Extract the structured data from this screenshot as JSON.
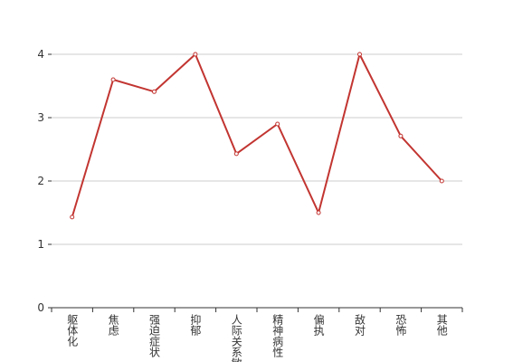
{
  "chart_data": {
    "type": "line",
    "categories": [
      "躯体化",
      "焦虑",
      "强迫症状",
      "抑郁",
      "人际关系敏感",
      "精神病性",
      "偏执",
      "敌对",
      "恐怖",
      "其他"
    ],
    "values": [
      1.43,
      3.6,
      3.41,
      4.0,
      2.43,
      2.9,
      1.5,
      4.0,
      2.71,
      2.0
    ],
    "color": "#c23531",
    "ylim": [
      0,
      4
    ],
    "yticks": [
      0,
      1,
      2,
      3,
      4
    ],
    "grid": true
  }
}
